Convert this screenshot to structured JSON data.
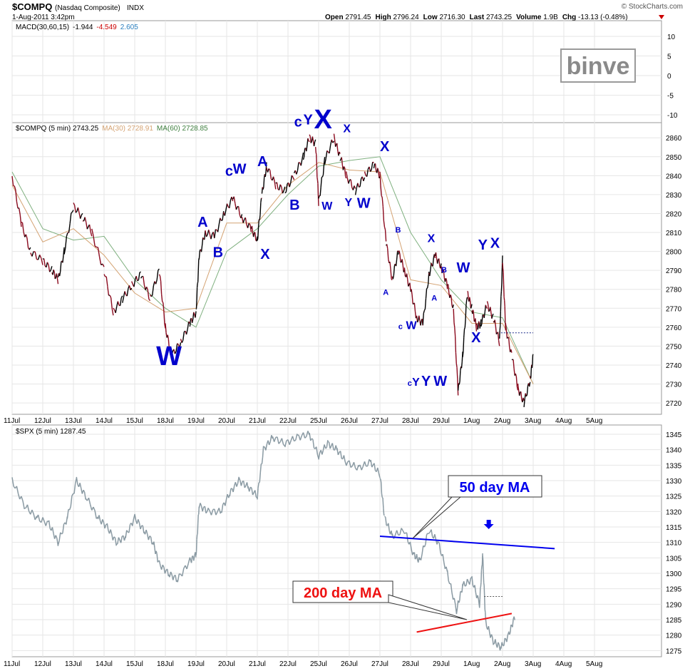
{
  "header": {
    "symbol": "$COMPQ",
    "name": "(Nasdaq Composite)",
    "exchange": "INDX",
    "date": "1-Aug-2011 3:42pm",
    "credit": "© StockCharts.com",
    "quote_parts": [
      {
        "label": "Open",
        "value": "2791.45"
      },
      {
        "label": "High",
        "value": "2796.24"
      },
      {
        "label": "Low",
        "value": "2716.30"
      },
      {
        "label": "Last",
        "value": "2743.25"
      },
      {
        "label": "Volume",
        "value": "1.9B"
      },
      {
        "label": "Chg",
        "value": "-13.13 (-0.48%)"
      }
    ]
  },
  "watermark": "binve",
  "colors": {
    "price_up": "#000000",
    "price_down": "#8b0a1e",
    "ma30": "#d4a373",
    "ma60": "#7fb07f",
    "spx": "#8a9aa3",
    "wave": "#0000cc",
    "ma50": "#0000ee",
    "ma200": "#ee1111",
    "grid": "#e6e6e6"
  },
  "chart_data": [
    {
      "type": "line",
      "title": "MACD(30,60,15) -1.944, -4.549, 2.605",
      "legend": [
        {
          "text": "MACD(30,60,15)",
          "color": "#000000"
        },
        {
          "text": "-1.944",
          "color": "#000000"
        },
        {
          "text": "-4.549",
          "color": "#cc0000"
        },
        {
          "text": "2.605",
          "color": "#2a7fbf"
        }
      ],
      "values": {
        "macd": -1.944,
        "signal": -4.549,
        "histogram": 2.605
      },
      "y_ticks": [
        "10",
        "5",
        "0",
        "-5",
        "-10"
      ],
      "ylim": [
        -12,
        14
      ],
      "series": []
    },
    {
      "type": "line",
      "title": "$COMPQ (5 min) 2743.25",
      "legend": [
        {
          "text": "$COMPQ (5 min) 2743.25",
          "color": "#000000"
        },
        {
          "text": "MA(30) 2728.91",
          "color": "#d4a373"
        },
        {
          "text": "MA(60) 2728.85",
          "color": "#3f7f3f"
        }
      ],
      "x_ticks": [
        "11Jul",
        "12Jul",
        "13Jul",
        "14Jul",
        "15Jul",
        "18Jul",
        "19Jul",
        "20Jul",
        "21Jul",
        "22Jul",
        "25Jul",
        "26Jul",
        "27Jul",
        "28Jul",
        "29Jul",
        "1Aug",
        "2Aug",
        "3Aug",
        "4Aug",
        "5Aug"
      ],
      "y_ticks": [
        "2860",
        "2850",
        "2840",
        "2830",
        "2820",
        "2810",
        "2800",
        "2790",
        "2780",
        "2770",
        "2760",
        "2750",
        "2740",
        "2730",
        "2720"
      ],
      "ylim": [
        2714,
        2868
      ],
      "series": [
        {
          "name": "$COMPQ (5 min)",
          "points": [
            [
              0,
              2840
            ],
            [
              0.3,
              2815
            ],
            [
              0.6,
              2800
            ],
            [
              1.0,
              2795
            ],
            [
              1.3,
              2790
            ],
            [
              1.5,
              2785
            ],
            [
              1.7,
              2800
            ],
            [
              2.0,
              2824
            ],
            [
              2.3,
              2818
            ],
            [
              2.6,
              2810
            ],
            [
              3.0,
              2790
            ],
            [
              3.3,
              2768
            ],
            [
              3.6,
              2775
            ],
            [
              3.9,
              2782
            ],
            [
              4.2,
              2788
            ],
            [
              4.5,
              2775
            ],
            [
              4.8,
              2790
            ],
            [
              5.0,
              2760
            ],
            [
              5.2,
              2745
            ],
            [
              5.5,
              2752
            ],
            [
              5.8,
              2762
            ],
            [
              6.0,
              2768
            ],
            [
              6.1,
              2797
            ],
            [
              6.3,
              2810
            ],
            [
              6.6,
              2808
            ],
            [
              6.9,
              2820
            ],
            [
              7.2,
              2828
            ],
            [
              7.5,
              2818
            ],
            [
              7.8,
              2812
            ],
            [
              8.0,
              2806
            ],
            [
              8.15,
              2830
            ],
            [
              8.3,
              2845
            ],
            [
              8.6,
              2835
            ],
            [
              8.9,
              2832
            ],
            [
              9.2,
              2840
            ],
            [
              9.5,
              2850
            ],
            [
              9.7,
              2860
            ],
            [
              9.9,
              2857
            ],
            [
              10.0,
              2826
            ],
            [
              10.2,
              2848
            ],
            [
              10.5,
              2860
            ],
            [
              10.7,
              2850
            ],
            [
              10.9,
              2840
            ],
            [
              11.2,
              2832
            ],
            [
              11.5,
              2840
            ],
            [
              11.8,
              2846
            ],
            [
              12.0,
              2840
            ],
            [
              12.2,
              2805
            ],
            [
              12.4,
              2785
            ],
            [
              12.6,
              2800
            ],
            [
              12.8,
              2790
            ],
            [
              13.0,
              2780
            ],
            [
              13.2,
              2765
            ],
            [
              13.4,
              2762
            ],
            [
              13.6,
              2788
            ],
            [
              13.8,
              2798
            ],
            [
              14.0,
              2792
            ],
            [
              14.2,
              2782
            ],
            [
              14.4,
              2770
            ],
            [
              14.55,
              2726
            ],
            [
              14.7,
              2745
            ],
            [
              14.85,
              2778
            ],
            [
              15.0,
              2770
            ],
            [
              15.15,
              2760
            ],
            [
              15.3,
              2762
            ],
            [
              15.5,
              2772
            ],
            [
              15.7,
              2765
            ],
            [
              15.9,
              2752
            ],
            [
              16.0,
              2796
            ],
            [
              16.1,
              2760
            ],
            [
              16.3,
              2745
            ],
            [
              16.5,
              2728
            ],
            [
              16.7,
              2720
            ],
            [
              16.9,
              2732
            ],
            [
              17.0,
              2745
            ]
          ]
        },
        {
          "name": "MA(30)",
          "points": [
            [
              0,
              2835
            ],
            [
              1,
              2805
            ],
            [
              2,
              2812
            ],
            [
              3,
              2798
            ],
            [
              4,
              2778
            ],
            [
              5,
              2768
            ],
            [
              6,
              2770
            ],
            [
              7,
              2815
            ],
            [
              8,
              2815
            ],
            [
              9,
              2835
            ],
            [
              10,
              2847
            ],
            [
              11,
              2843
            ],
            [
              12,
              2842
            ],
            [
              13,
              2785
            ],
            [
              14,
              2782
            ],
            [
              15,
              2762
            ],
            [
              16,
              2762
            ],
            [
              17,
              2730
            ]
          ]
        },
        {
          "name": "MA(60)",
          "points": [
            [
              0,
              2842
            ],
            [
              1,
              2812
            ],
            [
              2,
              2806
            ],
            [
              3,
              2808
            ],
            [
              4,
              2785
            ],
            [
              5,
              2770
            ],
            [
              6,
              2760
            ],
            [
              7,
              2800
            ],
            [
              8,
              2812
            ],
            [
              9,
              2830
            ],
            [
              10,
              2845
            ],
            [
              11,
              2848
            ],
            [
              12,
              2850
            ],
            [
              13,
              2810
            ],
            [
              14,
              2785
            ],
            [
              15,
              2768
            ],
            [
              16,
              2765
            ],
            [
              17,
              2730
            ]
          ]
        }
      ],
      "wave_labels": [
        {
          "text": "W",
          "x": 4.7,
          "y": 2740,
          "size": "large"
        },
        {
          "text": "A",
          "x": 6.05,
          "y": 2813,
          "size": "medium"
        },
        {
          "text": "B",
          "x": 6.55,
          "y": 2797,
          "size": "medium"
        },
        {
          "text": "c",
          "x": 6.95,
          "y": 2840,
          "size": "medium"
        },
        {
          "text": "W",
          "x": 7.2,
          "y": 2841,
          "size": "medium"
        },
        {
          "text": "A",
          "x": 8.0,
          "y": 2845,
          "size": "medium"
        },
        {
          "text": "X",
          "x": 8.1,
          "y": 2796,
          "size": "medium"
        },
        {
          "text": "B",
          "x": 9.05,
          "y": 2822,
          "size": "medium"
        },
        {
          "text": "c",
          "x": 9.2,
          "y": 2866,
          "size": "medium"
        },
        {
          "text": "Y",
          "x": 9.5,
          "y": 2867,
          "size": "medium"
        },
        {
          "text": "X",
          "x": 9.85,
          "y": 2865,
          "size": "large"
        },
        {
          "text": "W",
          "x": 10.1,
          "y": 2822,
          "size": "small"
        },
        {
          "text": "X",
          "x": 10.8,
          "y": 2863,
          "size": "small"
        },
        {
          "text": "Y",
          "x": 10.85,
          "y": 2824,
          "size": "small"
        },
        {
          "text": "W",
          "x": 11.25,
          "y": 2823,
          "size": "medium"
        },
        {
          "text": "X",
          "x": 12.0,
          "y": 2853,
          "size": "medium"
        },
        {
          "text": "B",
          "x": 12.5,
          "y": 2810,
          "size": "tiny"
        },
        {
          "text": "A",
          "x": 12.1,
          "y": 2777,
          "size": "tiny"
        },
        {
          "text": "X",
          "x": 13.55,
          "y": 2805,
          "size": "small"
        },
        {
          "text": "B",
          "x": 14.0,
          "y": 2789,
          "size": "tiny"
        },
        {
          "text": "A",
          "x": 13.68,
          "y": 2774,
          "size": "tiny"
        },
        {
          "text": "c",
          "x": 12.6,
          "y": 2759,
          "size": "tiny"
        },
        {
          "text": "W",
          "x": 12.85,
          "y": 2759,
          "size": "small"
        },
        {
          "text": "W",
          "x": 14.5,
          "y": 2789,
          "size": "medium"
        },
        {
          "text": "c",
          "x": 12.9,
          "y": 2729,
          "size": "tiny"
        },
        {
          "text": "Y",
          "x": 13.05,
          "y": 2729,
          "size": "small"
        },
        {
          "text": "Y",
          "x": 13.35,
          "y": 2729,
          "size": "medium"
        },
        {
          "text": "W",
          "x": 13.75,
          "y": 2729,
          "size": "medium"
        },
        {
          "text": "Y",
          "x": 15.2,
          "y": 2801,
          "size": "medium"
        },
        {
          "text": "X",
          "x": 15.6,
          "y": 2802,
          "size": "medium"
        },
        {
          "text": "X",
          "x": 14.98,
          "y": 2752,
          "size": "medium"
        }
      ]
    },
    {
      "type": "line",
      "title": "$SPX (5 min) 1287.45",
      "legend": [
        {
          "text": "$SPX (5 min) 1287.45",
          "color": "#000000"
        }
      ],
      "x_ticks": [
        "11Jul",
        "12Jul",
        "13Jul",
        "14Jul",
        "15Jul",
        "18Jul",
        "19Jul",
        "20Jul",
        "21Jul",
        "22Jul",
        "25Jul",
        "26Jul",
        "27Jul",
        "28Jul",
        "29Jul",
        "1Aug",
        "2Aug",
        "3Aug",
        "4Aug",
        "5Aug"
      ],
      "y_ticks": [
        "1345",
        "1340",
        "1335",
        "1330",
        "1325",
        "1320",
        "1315",
        "1310",
        "1305",
        "1300",
        "1295",
        "1290",
        "1285",
        "1280",
        "1275"
      ],
      "ylim": [
        1273,
        1348
      ],
      "series": [
        {
          "name": "$SPX (5 min)",
          "points": [
            [
              0,
              1330
            ],
            [
              0.4,
              1322
            ],
            [
              0.8,
              1318
            ],
            [
              1.2,
              1316
            ],
            [
              1.5,
              1310
            ],
            [
              1.8,
              1318
            ],
            [
              2.1,
              1330
            ],
            [
              2.4,
              1325
            ],
            [
              2.8,
              1318
            ],
            [
              3.1,
              1315
            ],
            [
              3.4,
              1310
            ],
            [
              3.7,
              1312
            ],
            [
              4.0,
              1318
            ],
            [
              4.3,
              1314
            ],
            [
              4.6,
              1310
            ],
            [
              4.8,
              1303
            ],
            [
              5.1,
              1300
            ],
            [
              5.4,
              1298
            ],
            [
              5.8,
              1304
            ],
            [
              6.0,
              1306
            ],
            [
              6.1,
              1322
            ],
            [
              6.4,
              1320
            ],
            [
              6.8,
              1320
            ],
            [
              7.1,
              1326
            ],
            [
              7.4,
              1330
            ],
            [
              7.7,
              1328
            ],
            [
              8.0,
              1325
            ],
            [
              8.2,
              1340
            ],
            [
              8.5,
              1344
            ],
            [
              8.9,
              1342
            ],
            [
              9.3,
              1344
            ],
            [
              9.7,
              1345
            ],
            [
              10.0,
              1338
            ],
            [
              10.3,
              1342
            ],
            [
              10.6,
              1340
            ],
            [
              10.9,
              1336
            ],
            [
              11.3,
              1334
            ],
            [
              11.7,
              1336
            ],
            [
              12.0,
              1332
            ],
            [
              12.15,
              1318
            ],
            [
              12.4,
              1312
            ],
            [
              12.8,
              1314
            ],
            [
              13.1,
              1306
            ],
            [
              13.3,
              1304
            ],
            [
              13.6,
              1314
            ],
            [
              13.9,
              1310
            ],
            [
              14.2,
              1300
            ],
            [
              14.5,
              1288
            ],
            [
              14.7,
              1296
            ],
            [
              15.0,
              1298
            ],
            [
              15.25,
              1290
            ],
            [
              15.35,
              1306
            ],
            [
              15.45,
              1284
            ],
            [
              15.7,
              1278
            ],
            [
              15.95,
              1276
            ],
            [
              16.2,
              1280
            ],
            [
              16.4,
              1286
            ]
          ]
        }
      ],
      "annotations": [
        {
          "text": "50 day MA",
          "color": "#0000ee"
        },
        {
          "text": "200 day MA",
          "color": "#ee1111"
        }
      ],
      "lines": [
        {
          "name": "50 day MA",
          "from": [
            12.0,
            1312
          ],
          "to": [
            17.7,
            1308
          ]
        },
        {
          "name": "200 day MA",
          "from": [
            13.2,
            1281
          ],
          "to": [
            16.3,
            1287
          ]
        }
      ]
    }
  ]
}
